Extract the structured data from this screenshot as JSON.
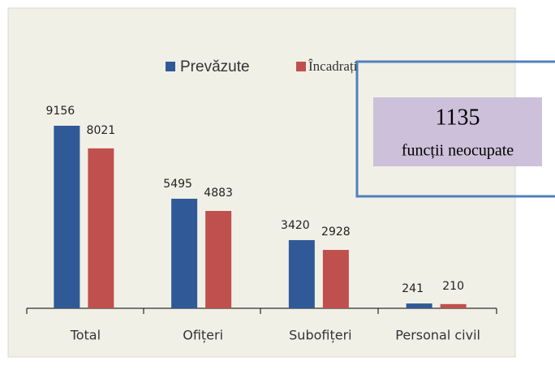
{
  "chart_data": {
    "type": "bar",
    "categories": [
      "Total",
      "Ofițeri",
      "Subofițeri",
      "Personal civil"
    ],
    "series": [
      {
        "name": "Prevăzute",
        "color": "#2f5a97",
        "values": [
          9156,
          5495,
          3420,
          241
        ]
      },
      {
        "name": "Încadrați",
        "color": "#c0504d",
        "values": [
          8021,
          4883,
          2928,
          210
        ]
      }
    ],
    "legend": "top",
    "annotation": {
      "number": 1135,
      "text": "funcții neocupate"
    }
  }
}
